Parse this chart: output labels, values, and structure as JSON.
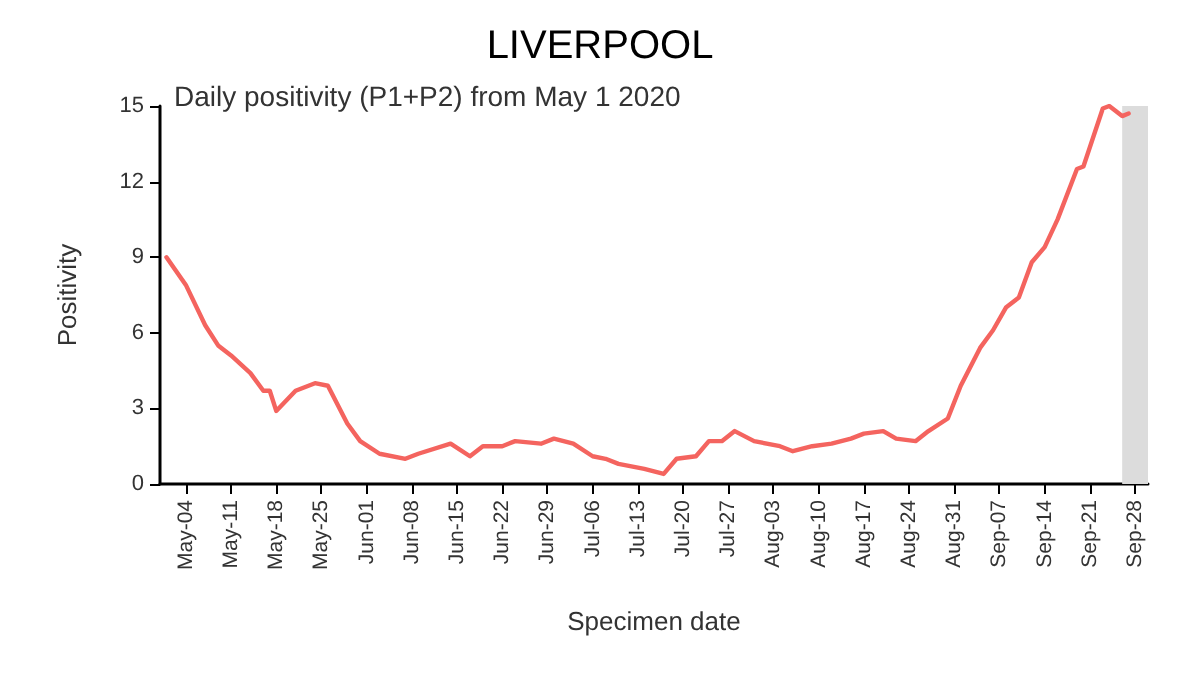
{
  "chart_data": {
    "type": "line",
    "title": "LIVERPOOL",
    "subtitle": "Daily positivity (P1+P2) from May 1 2020",
    "xlabel": "Specimen date",
    "ylabel": "Positivity",
    "x": [
      "2020-05-01",
      "2020-05-04",
      "2020-05-07",
      "2020-05-09",
      "2020-05-11",
      "2020-05-14",
      "2020-05-16",
      "2020-05-17",
      "2020-05-18",
      "2020-05-21",
      "2020-05-24",
      "2020-05-26",
      "2020-05-29",
      "2020-05-31",
      "2020-06-03",
      "2020-06-07",
      "2020-06-09",
      "2020-06-14",
      "2020-06-17",
      "2020-06-19",
      "2020-06-22",
      "2020-06-24",
      "2020-06-28",
      "2020-06-30",
      "2020-07-03",
      "2020-07-06",
      "2020-07-08",
      "2020-07-10",
      "2020-07-14",
      "2020-07-17",
      "2020-07-19",
      "2020-07-22",
      "2020-07-24",
      "2020-07-26",
      "2020-07-28",
      "2020-07-31",
      "2020-08-04",
      "2020-08-06",
      "2020-08-09",
      "2020-08-12",
      "2020-08-15",
      "2020-08-17",
      "2020-08-20",
      "2020-08-22",
      "2020-08-25",
      "2020-08-27",
      "2020-08-30",
      "2020-09-01",
      "2020-09-04",
      "2020-09-06",
      "2020-09-08",
      "2020-09-10",
      "2020-09-12",
      "2020-09-14",
      "2020-09-16",
      "2020-09-19",
      "2020-09-20",
      "2020-09-23",
      "2020-09-24",
      "2020-09-26",
      "2020-09-27"
    ],
    "series": [
      {
        "color": "#f4645f",
        "values": [
          9.0,
          7.9,
          6.3,
          5.5,
          5.1,
          4.4,
          3.7,
          3.7,
          2.9,
          3.7,
          4.0,
          3.9,
          2.4,
          1.7,
          1.2,
          1.0,
          1.2,
          1.6,
          1.1,
          1.5,
          1.5,
          1.7,
          1.6,
          1.8,
          1.6,
          1.1,
          1.0,
          0.8,
          0.6,
          0.4,
          1.0,
          1.1,
          1.7,
          1.7,
          2.1,
          1.7,
          1.5,
          1.3,
          1.5,
          1.6,
          1.8,
          2.0,
          2.1,
          1.8,
          1.7,
          2.1,
          2.6,
          3.9,
          5.4,
          6.1,
          7.0,
          7.4,
          8.8,
          9.4,
          10.5,
          12.5,
          12.6,
          14.9,
          15.0,
          14.6,
          14.7
        ]
      }
    ],
    "xlim": [
      "2020-04-30",
      "2020-09-30"
    ],
    "xticks": [
      {
        "value": "2020-05-04",
        "label": "May-04"
      },
      {
        "value": "2020-05-11",
        "label": "May-11"
      },
      {
        "value": "2020-05-18",
        "label": "May-18"
      },
      {
        "value": "2020-05-25",
        "label": "May-25"
      },
      {
        "value": "2020-06-01",
        "label": "Jun-01"
      },
      {
        "value": "2020-06-08",
        "label": "Jun-08"
      },
      {
        "value": "2020-06-15",
        "label": "Jun-15"
      },
      {
        "value": "2020-06-22",
        "label": "Jun-22"
      },
      {
        "value": "2020-06-29",
        "label": "Jun-29"
      },
      {
        "value": "2020-07-06",
        "label": "Jul-06"
      },
      {
        "value": "2020-07-13",
        "label": "Jul-13"
      },
      {
        "value": "2020-07-20",
        "label": "Jul-20"
      },
      {
        "value": "2020-07-27",
        "label": "Jul-27"
      },
      {
        "value": "2020-08-03",
        "label": "Aug-03"
      },
      {
        "value": "2020-08-10",
        "label": "Aug-10"
      },
      {
        "value": "2020-08-17",
        "label": "Aug-17"
      },
      {
        "value": "2020-08-24",
        "label": "Aug-24"
      },
      {
        "value": "2020-08-31",
        "label": "Aug-31"
      },
      {
        "value": "2020-09-07",
        "label": "Sep-07"
      },
      {
        "value": "2020-09-14",
        "label": "Sep-14"
      },
      {
        "value": "2020-09-21",
        "label": "Sep-21"
      },
      {
        "value": "2020-09-28",
        "label": "Sep-28"
      }
    ],
    "ylim": [
      0,
      15
    ],
    "yticks": [
      0,
      3,
      6,
      9,
      12,
      15
    ],
    "bands": [
      {
        "axis": "x",
        "from": "2020-09-26",
        "to": "2020-09-30",
        "color": "#dcdcdc"
      }
    ],
    "grid": false,
    "marker": "none",
    "line_style": "solid"
  }
}
